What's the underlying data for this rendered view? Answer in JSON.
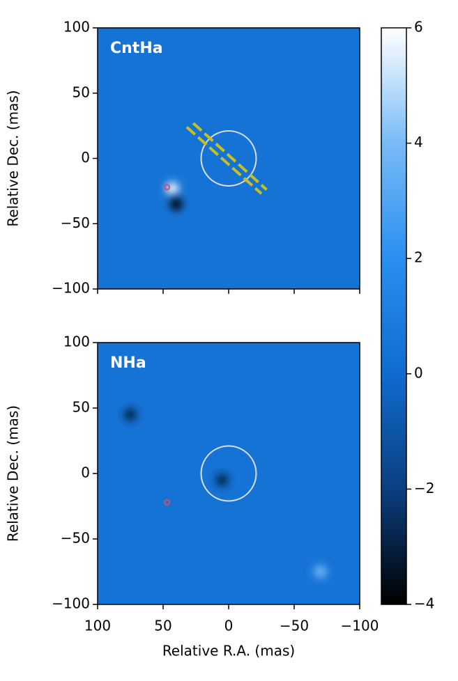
{
  "chart_data": [
    {
      "type": "image",
      "panel_label": "CntHa",
      "ylabel": "Relative Dec. (mas)",
      "xlim": [
        100,
        -100
      ],
      "ylim": [
        -100,
        100
      ],
      "xticks": [
        100,
        50,
        0,
        {
          "value": -50,
          "label": "−50"
        },
        {
          "value": -100,
          "label": "−100"
        }
      ],
      "yticks": [
        {
          "value": -100,
          "label": "−100"
        },
        {
          "value": -50,
          "label": "−50"
        },
        0,
        50,
        100
      ],
      "circle": {
        "x": 0,
        "y": 0,
        "r": 21,
        "color": "#d8dde6"
      },
      "point": {
        "x": 47,
        "y": -22,
        "color": "#d0506a"
      },
      "lines": [
        {
          "x": [
            32,
            -25
          ],
          "y": [
            24,
            -27
          ],
          "color": "#c8c020"
        },
        {
          "x": [
            27,
            -29
          ],
          "y": [
            27,
            -24
          ],
          "color": "#c8c020"
        }
      ],
      "sources": [
        {
          "x": 43,
          "y": -23,
          "value": 6
        },
        {
          "x": 40,
          "y": -35,
          "value": -4
        }
      ]
    },
    {
      "type": "image",
      "panel_label": "NHa",
      "ylabel": "Relative Dec. (mas)",
      "xlabel": "Relative R.A. (mas)",
      "xlim": [
        100,
        -100
      ],
      "ylim": [
        -100,
        100
      ],
      "xticks": [
        100,
        50,
        0,
        {
          "value": -50,
          "label": "−50"
        },
        {
          "value": -100,
          "label": "−100"
        }
      ],
      "yticks": [
        {
          "value": -100,
          "label": "−100"
        },
        {
          "value": -50,
          "label": "−50"
        },
        0,
        50,
        100
      ],
      "circle": {
        "x": 0,
        "y": 0,
        "r": 21,
        "color": "#d8dde6"
      },
      "point": {
        "x": 47,
        "y": -22,
        "color": "#d0506a"
      },
      "lines": [],
      "sources": [
        {
          "x": 75,
          "y": 45,
          "value": -3
        },
        {
          "x": 5,
          "y": -5,
          "value": -3
        },
        {
          "x": -70,
          "y": -75,
          "value": 4
        }
      ]
    }
  ],
  "colorbar": {
    "clim": [
      -4,
      6
    ],
    "ticks": [
      {
        "value": -4,
        "label": "−4"
      },
      {
        "value": -2,
        "label": "−2"
      },
      0,
      2,
      4,
      6
    ],
    "colormap": [
      [
        -4,
        "#000000"
      ],
      [
        -2,
        "#0b3f80"
      ],
      [
        0,
        "#0f6ccf"
      ],
      [
        2,
        "#2a8ff0"
      ],
      [
        4,
        "#78bbf6"
      ],
      [
        6,
        "#ffffff"
      ]
    ]
  }
}
